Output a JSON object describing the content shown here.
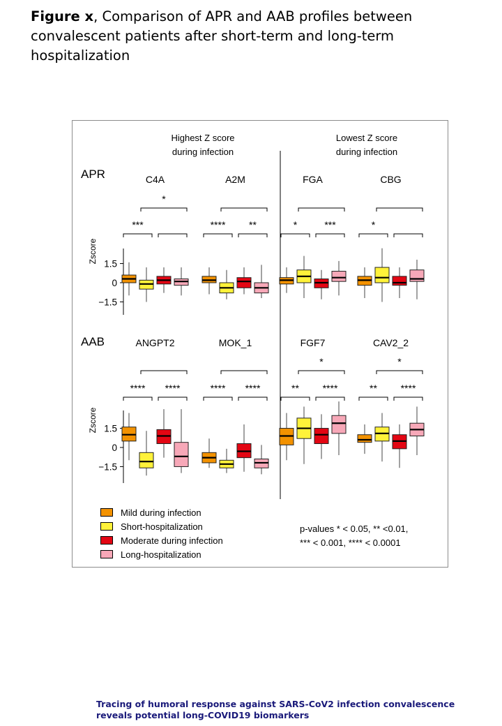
{
  "figure": {
    "title_bold": "Figure x",
    "title_rest": ", Comparison of APR and AAB profiles between convalescent patients after short-term and long-term hospitalization"
  },
  "footer": {
    "text": "Tracing of humoral response against SARS-CoV2 infection convalescence reveals potential long-COVID19 biomarkers"
  },
  "headers": {
    "left_line1": "Highest Z score",
    "left_line2": "during infection",
    "right_line1": "Lowest Z score",
    "right_line2": "during infection"
  },
  "legend": {
    "items": [
      {
        "label": "Mild during infection",
        "color": "#f39200"
      },
      {
        "label": "Short-hospitalization",
        "color": "#fff23a"
      },
      {
        "label": "Moderate during infection",
        "color": "#e30613"
      },
      {
        "label": "Long-hospitalization",
        "color": "#f7a8b8"
      }
    ]
  },
  "pvalue_note": {
    "line1": "p-values * < 0.05, ** <0.01,",
    "line2": "*** < 0.001, **** < 0.0001"
  },
  "chart_data": [
    {
      "type": "box",
      "row_label": "APR",
      "ylabel": "Zscore",
      "yticks": [
        "1.5",
        "0",
        "−1.5"
      ],
      "ytick_values": [
        1.5,
        0,
        -1.5
      ],
      "series_colors": [
        "#f39200",
        "#fff23a",
        "#e30613",
        "#f7a8b8"
      ],
      "groups": [
        {
          "name": "C4A",
          "boxes": [
            [
              -1.0,
              0.0,
              0.3,
              0.6,
              1.6
            ],
            [
              -1.5,
              -0.5,
              -0.1,
              0.2,
              1.2
            ],
            [
              -0.8,
              -0.1,
              0.2,
              0.5,
              1.2
            ],
            [
              -1.0,
              -0.2,
              0.1,
              0.3,
              1.2
            ]
          ],
          "brackets": [
            {
              "pair": "1-2",
              "label": "***"
            },
            {
              "pair": "3-4",
              "label": ""
            },
            {
              "pair": "2-4",
              "label": "*"
            }
          ]
        },
        {
          "name": "A2M",
          "boxes": [
            [
              -0.9,
              0.0,
              0.2,
              0.5,
              1.2
            ],
            [
              -1.3,
              -0.8,
              -0.4,
              0.0,
              1.0
            ],
            [
              -0.9,
              -0.4,
              0.1,
              0.4,
              1.2
            ],
            [
              -1.2,
              -0.8,
              -0.4,
              0.0,
              1.4
            ]
          ],
          "brackets": [
            {
              "pair": "1-2",
              "label": "****"
            },
            {
              "pair": "3-4",
              "label": "**"
            },
            {
              "pair": "2-4",
              "label": ""
            }
          ]
        },
        {
          "name": "FGA",
          "boxes": [
            [
              -0.8,
              -0.1,
              0.2,
              0.4,
              1.2
            ],
            [
              -1.2,
              0.0,
              0.5,
              1.0,
              2.1
            ],
            [
              -1.3,
              -0.4,
              0.0,
              0.3,
              1.0
            ],
            [
              -1.0,
              0.1,
              0.4,
              0.9,
              1.7
            ]
          ],
          "brackets": [
            {
              "pair": "1-2",
              "label": "*"
            },
            {
              "pair": "3-4",
              "label": "***"
            },
            {
              "pair": "2-4",
              "label": ""
            }
          ]
        },
        {
          "name": "CBG",
          "boxes": [
            [
              -1.2,
              -0.2,
              0.2,
              0.5,
              1.2
            ],
            [
              -1.5,
              0.0,
              0.4,
              1.2,
              2.7
            ],
            [
              -1.2,
              -0.2,
              0.0,
              0.5,
              1.2
            ],
            [
              -1.3,
              0.1,
              0.3,
              1.0,
              1.8
            ]
          ],
          "brackets": [
            {
              "pair": "1-2",
              "label": "*"
            },
            {
              "pair": "3-4",
              "label": ""
            },
            {
              "pair": "2-4",
              "label": ""
            }
          ]
        }
      ]
    },
    {
      "type": "box",
      "row_label": "AAB",
      "ylabel": "Zscore",
      "yticks": [
        "1.5",
        "0",
        "−1.5"
      ],
      "ytick_values": [
        1.5,
        0,
        -1.5
      ],
      "series_colors": [
        "#f39200",
        "#fff23a",
        "#e30613",
        "#f7a8b8"
      ],
      "groups": [
        {
          "name": "ANGPT2",
          "boxes": [
            [
              -1.0,
              0.5,
              1.0,
              1.6,
              2.7
            ],
            [
              -2.2,
              -1.6,
              -1.1,
              -0.4,
              1.3
            ],
            [
              -0.8,
              0.3,
              0.9,
              1.4,
              3.0
            ],
            [
              -2.0,
              -1.5,
              -0.7,
              0.4,
              3.0
            ]
          ],
          "brackets": [
            {
              "pair": "1-2",
              "label": "****"
            },
            {
              "pair": "3-4",
              "label": "****"
            },
            {
              "pair": "2-4",
              "label": ""
            }
          ]
        },
        {
          "name": "MOK_1",
          "boxes": [
            [
              -1.6,
              -1.2,
              -0.8,
              -0.4,
              0.7
            ],
            [
              -2.0,
              -1.6,
              -1.3,
              -1.0,
              -0.1
            ],
            [
              -1.9,
              -0.8,
              -0.3,
              0.3,
              1.8
            ],
            [
              -2.1,
              -1.6,
              -1.2,
              -0.9,
              0.2
            ]
          ],
          "brackets": [
            {
              "pair": "1-2",
              "label": "****"
            },
            {
              "pair": "3-4",
              "label": "****"
            },
            {
              "pair": "2-4",
              "label": ""
            }
          ]
        },
        {
          "name": "FGF7",
          "boxes": [
            [
              -1.0,
              0.2,
              0.9,
              1.5,
              2.7
            ],
            [
              -1.3,
              0.7,
              1.5,
              2.3,
              3.2
            ],
            [
              -0.9,
              0.3,
              1.0,
              1.5,
              2.6
            ],
            [
              -0.6,
              1.1,
              1.9,
              2.5,
              3.6
            ]
          ],
          "brackets": [
            {
              "pair": "1-2",
              "label": "**"
            },
            {
              "pair": "3-4",
              "label": "****"
            },
            {
              "pair": "2-4",
              "label": "*"
            }
          ]
        },
        {
          "name": "CAV2_2",
          "boxes": [
            [
              -0.5,
              0.4,
              0.6,
              1.0,
              1.8
            ],
            [
              -1.1,
              0.5,
              1.1,
              1.6,
              2.7
            ],
            [
              -1.6,
              -0.1,
              0.5,
              1.0,
              1.8
            ],
            [
              -0.6,
              0.9,
              1.4,
              1.9,
              3.2
            ]
          ],
          "brackets": [
            {
              "pair": "1-2",
              "label": "**"
            },
            {
              "pair": "3-4",
              "label": "****"
            },
            {
              "pair": "2-4",
              "label": "*"
            }
          ]
        }
      ]
    }
  ]
}
